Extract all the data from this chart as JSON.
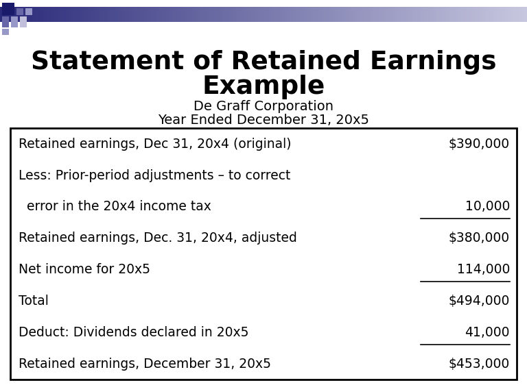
{
  "title_line1": "Statement of Retained Earnings",
  "title_line2": "Example",
  "subtitle_line1": "De Graff Corporation",
  "subtitle_line2": "Year Ended December 31, 20x5",
  "rows": [
    {
      "label": "Retained earnings, Dec 31, 20x4 (original)",
      "value": "$390,000",
      "underline": false
    },
    {
      "label": "Less: Prior-period adjustments – to correct",
      "value": "",
      "underline": false
    },
    {
      "label": "  error in the 20x4 income tax",
      "value": "10,000",
      "underline": true
    },
    {
      "label": "Retained earnings, Dec. 31, 20x4, adjusted",
      "value": "$380,000",
      "underline": false
    },
    {
      "label": "Net income for 20x5",
      "value": "114,000",
      "underline": true
    },
    {
      "label": "Total",
      "value": "$494,000",
      "underline": false
    },
    {
      "label": "Deduct: Dividends declared in 20x5",
      "value": "41,000",
      "underline": true
    },
    {
      "label": "Retained earnings, December 31, 20x5",
      "value": "$453,000",
      "underline": false
    }
  ],
  "background_color": "#ffffff",
  "title_color": "#000000",
  "subtitle_color": "#000000",
  "table_text_color": "#000000",
  "border_color": "#000000",
  "fig_width": 7.68,
  "fig_height": 5.62,
  "dpi": 100
}
